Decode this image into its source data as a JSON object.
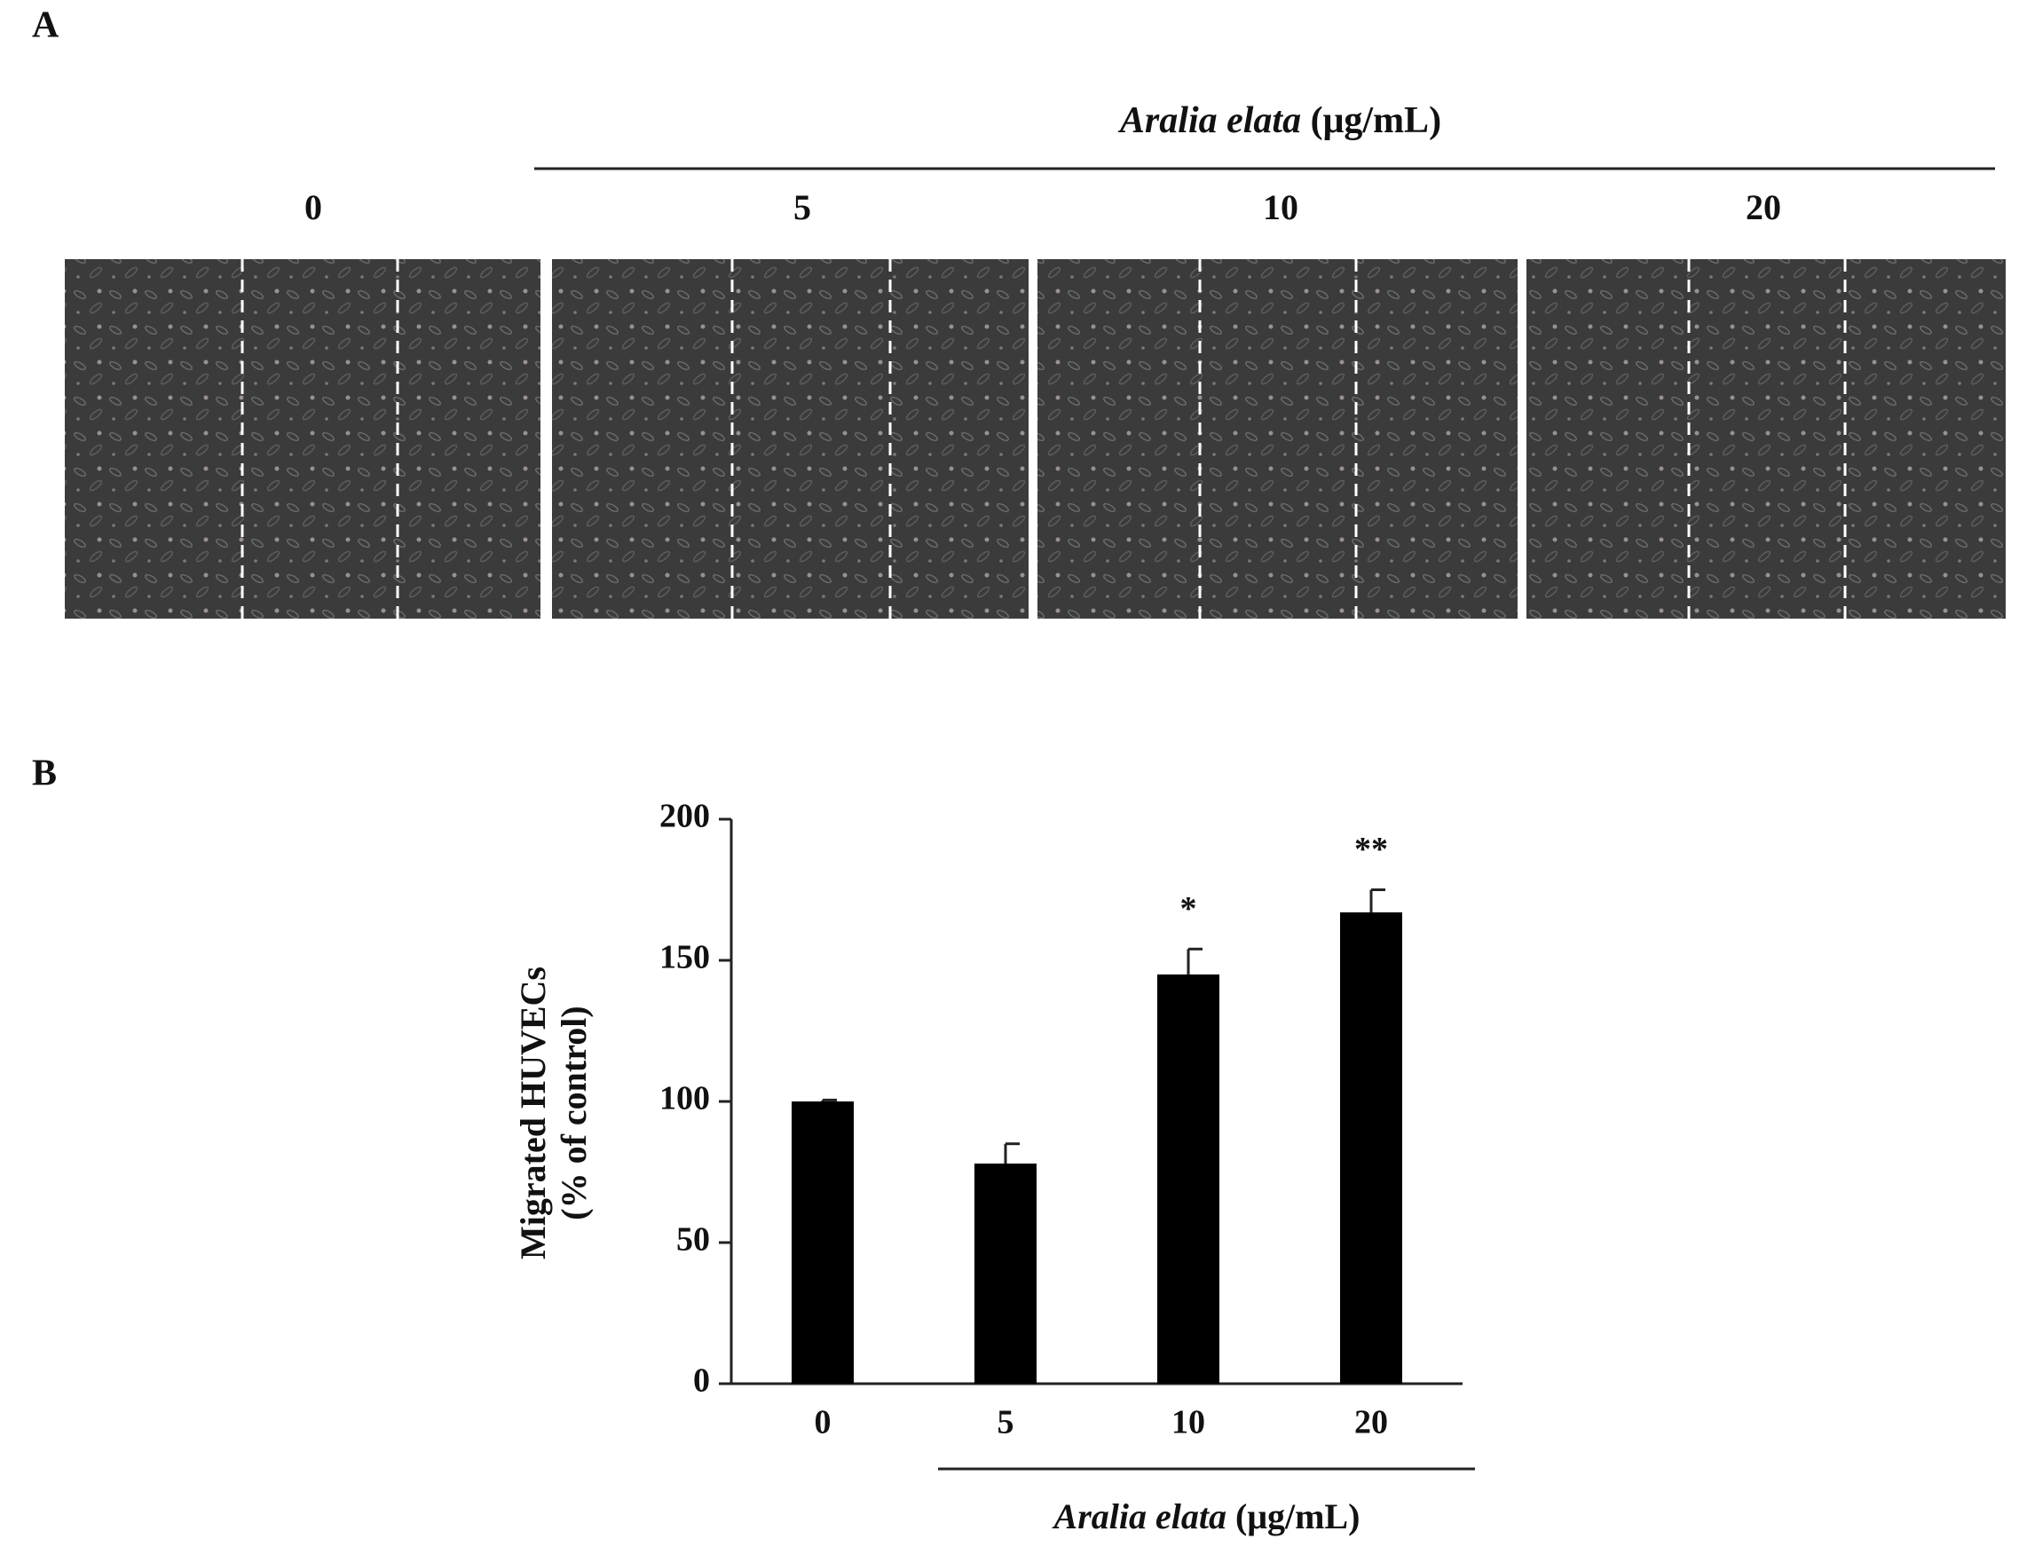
{
  "panel_a": {
    "label": "A",
    "title_italic": "Aralia elata",
    "title_units": "(μg/mL)",
    "columns": [
      "0",
      "5",
      "10",
      "20"
    ]
  },
  "chart_data": {
    "type": "bar",
    "panel_label": "B",
    "y_label": [
      "Migrated HUVECs",
      "(% of control)"
    ],
    "x_label_italic": "Aralia elata",
    "x_label_units": "(μg/mL)",
    "categories": [
      "0",
      "5",
      "10",
      "20"
    ],
    "values": [
      100,
      78,
      145,
      167
    ],
    "errors": [
      0.5,
      7,
      9,
      8
    ],
    "significance": [
      null,
      null,
      "*",
      "**"
    ],
    "color": "#000000",
    "ylim": [
      0,
      200
    ],
    "yticks": [
      0,
      50,
      100,
      150,
      200
    ]
  }
}
